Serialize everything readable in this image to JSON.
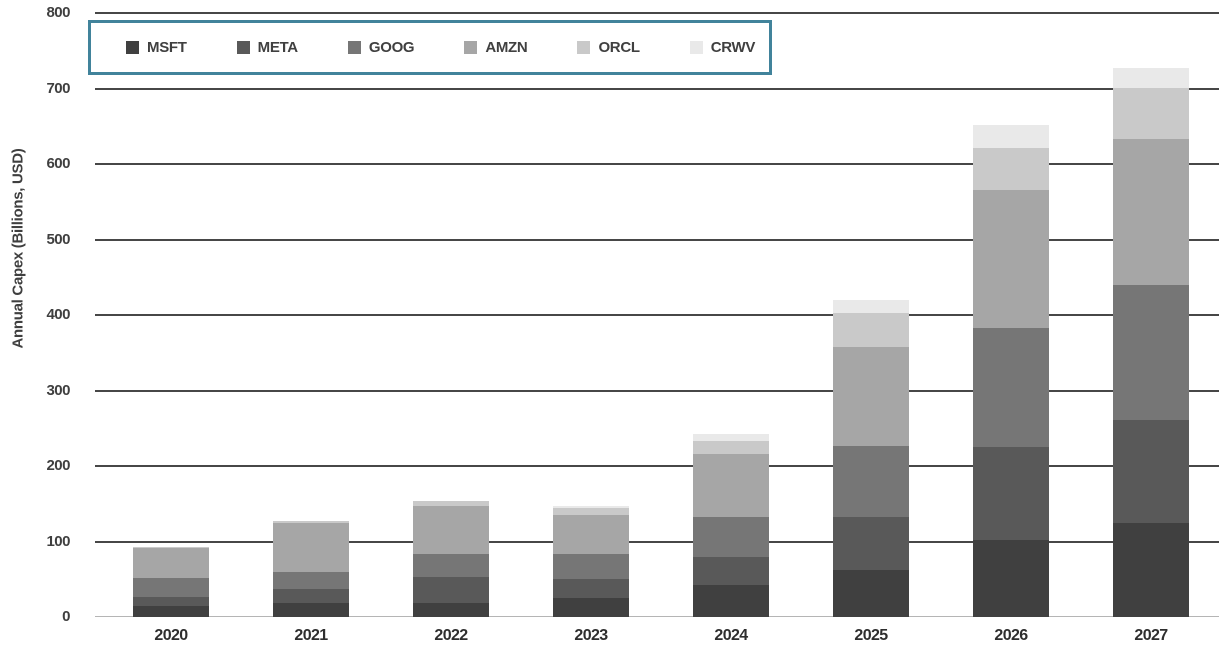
{
  "chart_data": {
    "type": "bar",
    "stacked": true,
    "title": "",
    "xlabel": "",
    "ylabel": "Annual Capex  (Billions, USD)",
    "ylim": [
      0,
      800
    ],
    "yticks": [
      0,
      100,
      200,
      300,
      400,
      500,
      600,
      700,
      800
    ],
    "grid": true,
    "legend_position": "top-left",
    "categories": [
      "2020",
      "2021",
      "2022",
      "2023",
      "2024",
      "2025",
      "2026",
      "2027"
    ],
    "series": [
      {
        "name": "MSFT",
        "color": "#404040",
        "values": [
          14,
          18,
          19,
          25,
          42,
          62,
          102,
          124
        ]
      },
      {
        "name": "META",
        "color": "#595959",
        "values": [
          13,
          19,
          34,
          25,
          38,
          71,
          123,
          137
        ]
      },
      {
        "name": "GOOG",
        "color": "#767676",
        "values": [
          24,
          23,
          31,
          33,
          52,
          93,
          158,
          179
        ]
      },
      {
        "name": "AMZN",
        "color": "#a6a6a6",
        "values": [
          41,
          65,
          63,
          52,
          84,
          131,
          183,
          193
        ]
      },
      {
        "name": "ORCL",
        "color": "#c9c9c9",
        "values": [
          1,
          2,
          7,
          10,
          17,
          46,
          55,
          68
        ]
      },
      {
        "name": "CRWV",
        "color": "#e9e9e9",
        "values": [
          0,
          0,
          0,
          2,
          9,
          17,
          31,
          26
        ]
      }
    ],
    "totals": [
      93,
      127,
      154,
      147,
      242,
      420,
      652,
      727
    ]
  },
  "colors": {
    "background": "#ffffff",
    "gridline": "#474747",
    "zero_line": "#b5b5b5",
    "axis_text": "#3f3f3f",
    "legend_border": "#41839b"
  }
}
